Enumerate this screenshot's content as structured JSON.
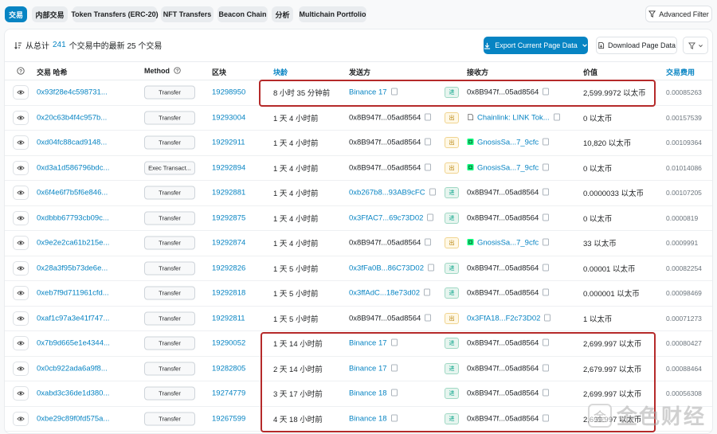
{
  "tabs": [
    {
      "label": "交易",
      "active": true
    },
    {
      "label": "内部交易"
    },
    {
      "label": "Token Transfers (ERC-20)"
    },
    {
      "label": "NFT Transfers"
    },
    {
      "label": "Beacon Chain"
    },
    {
      "label": "分析"
    },
    {
      "label": "Multichain Portfolio"
    }
  ],
  "advanced_filter": "Advanced Filter",
  "summary": {
    "prefix": "从总计",
    "count": "241",
    "suffix": "个交易中的最新 25 个交易"
  },
  "export_label": "Export Current Page Data",
  "download_label": "Download Page Data",
  "headers": {
    "hash": "交易 哈希",
    "method": "Method",
    "block": "区块",
    "age": "块龄",
    "from": "发送方",
    "to": "接收方",
    "value": "价值",
    "fee": "交易费用"
  },
  "rows": [
    {
      "hash": "0x93f28e4c598731...",
      "method": "Transfer",
      "block": "19298950",
      "age": "8 小时 35 分钟前",
      "from": "Binance 17",
      "from_link": true,
      "dir": "进",
      "to": "0x8B947f...05ad8564",
      "to_link": false,
      "to_icon": "",
      "value": "2,599.9972 以太币",
      "fee": "0.00085263"
    },
    {
      "hash": "0x20c63b4f4c957b...",
      "method": "Transfer",
      "block": "19293004",
      "age": "1 天 4 小时前",
      "from": "0x8B947f...05ad8564",
      "from_link": false,
      "dir": "出",
      "to": "Chainlink: LINK Tok...",
      "to_link": true,
      "to_icon": "doc",
      "value": "0 以太币",
      "fee": "0.00157539"
    },
    {
      "hash": "0xd04fc88cad9148...",
      "method": "Transfer",
      "block": "19292911",
      "age": "1 天 4 小时前",
      "from": "0x8B947f...05ad8564",
      "from_link": false,
      "dir": "出",
      "to": "GnosisSa...7_9cfc",
      "to_link": true,
      "to_icon": "gnosis",
      "value": "10,820 以太币",
      "fee": "0.00109364"
    },
    {
      "hash": "0xd3a1d586796bdc...",
      "method": "Exec Transact...",
      "block": "19292894",
      "age": "1 天 4 小时前",
      "from": "0x8B947f...05ad8564",
      "from_link": false,
      "dir": "出",
      "to": "GnosisSa...7_9cfc",
      "to_link": true,
      "to_icon": "gnosis",
      "value": "0 以太币",
      "fee": "0.01014086"
    },
    {
      "hash": "0x6f4e6f7b5f6e846...",
      "method": "Transfer",
      "block": "19292881",
      "age": "1 天 4 小时前",
      "from": "0xb267b8...93AB9cFC",
      "from_link": true,
      "dir": "进",
      "to": "0x8B947f...05ad8564",
      "to_link": false,
      "to_icon": "",
      "value": "0.0000033 以太币",
      "fee": "0.00107205"
    },
    {
      "hash": "0xdbbb67793cb09c...",
      "method": "Transfer",
      "block": "19292875",
      "age": "1 天 4 小时前",
      "from": "0x3FfAC7...69c73D02",
      "from_link": true,
      "dir": "进",
      "to": "0x8B947f...05ad8564",
      "to_link": false,
      "to_icon": "",
      "value": "0 以太币",
      "fee": "0.0000819"
    },
    {
      "hash": "0x9e2e2ca61b215e...",
      "method": "Transfer",
      "block": "19292874",
      "age": "1 天 4 小时前",
      "from": "0x8B947f...05ad8564",
      "from_link": false,
      "dir": "出",
      "to": "GnosisSa...7_9cfc",
      "to_link": true,
      "to_icon": "gnosis",
      "value": "33 以太币",
      "fee": "0.0009991"
    },
    {
      "hash": "0x28a3f95b73de6e...",
      "method": "Transfer",
      "block": "19292826",
      "age": "1 天 5 小时前",
      "from": "0x3fFa0B...86C73D02",
      "from_link": true,
      "dir": "进",
      "to": "0x8B947f...05ad8564",
      "to_link": false,
      "to_icon": "",
      "value": "0.00001 以太币",
      "fee": "0.00082254"
    },
    {
      "hash": "0xeb7f9d711961cfd...",
      "method": "Transfer",
      "block": "19292818",
      "age": "1 天 5 小时前",
      "from": "0x3ffAdC...18e73d02",
      "from_link": true,
      "dir": "进",
      "to": "0x8B947f...05ad8564",
      "to_link": false,
      "to_icon": "",
      "value": "0.000001 以太币",
      "fee": "0.00098469"
    },
    {
      "hash": "0xaf1c97a3e41f747...",
      "method": "Transfer",
      "block": "19292811",
      "age": "1 天 5 小时前",
      "from": "0x8B947f...05ad8564",
      "from_link": false,
      "dir": "出",
      "to": "0x3FfA18...F2c73D02",
      "to_link": true,
      "to_icon": "",
      "value": "1 以太币",
      "fee": "0.00071273"
    },
    {
      "hash": "0x7b9d665e1e4344...",
      "method": "Transfer",
      "block": "19290052",
      "age": "1 天 14 小时前",
      "from": "Binance 17",
      "from_link": true,
      "dir": "进",
      "to": "0x8B947f...05ad8564",
      "to_link": false,
      "to_icon": "",
      "value": "2,699.997 以太币",
      "fee": "0.00080427"
    },
    {
      "hash": "0x0cb922ada6a9f8...",
      "method": "Transfer",
      "block": "19282805",
      "age": "2 天 14 小时前",
      "from": "Binance 17",
      "from_link": true,
      "dir": "进",
      "to": "0x8B947f...05ad8564",
      "to_link": false,
      "to_icon": "",
      "value": "2,679.997 以太币",
      "fee": "0.00088464"
    },
    {
      "hash": "0xabd3c36de1d380...",
      "method": "Transfer",
      "block": "19274779",
      "age": "3 天 17 小时前",
      "from": "Binance 18",
      "from_link": true,
      "dir": "进",
      "to": "0x8B947f...05ad8564",
      "to_link": false,
      "to_icon": "",
      "value": "2,699.997 以太币",
      "fee": "0.00056308"
    },
    {
      "hash": "0xbe29c89f0fd575a...",
      "method": "Transfer",
      "block": "19267599",
      "age": "4 天 18 小时前",
      "from": "Binance 18",
      "from_link": true,
      "dir": "进",
      "to": "0x8B947f...05ad8564",
      "to_link": false,
      "to_icon": "",
      "value": "2,699.997 以太币",
      "fee": ""
    }
  ],
  "watermark": {
    "text": "金色财经",
    "logo_char": "金"
  }
}
